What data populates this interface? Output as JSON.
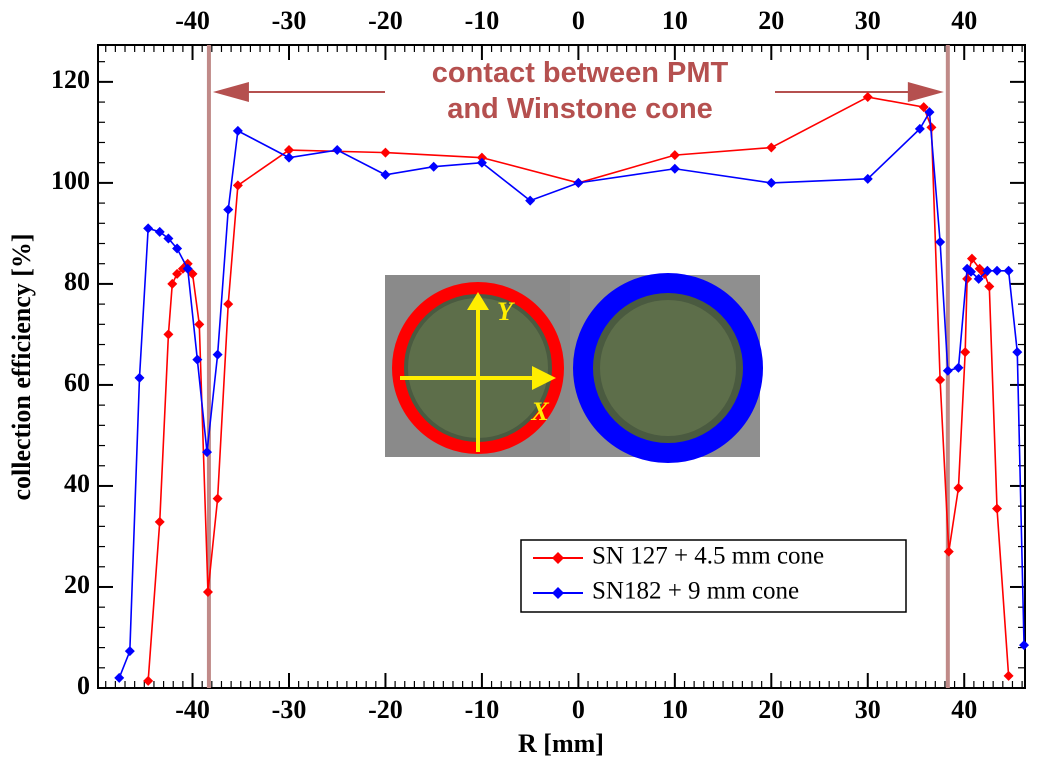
{
  "chart_data": {
    "type": "line",
    "xlabel": "R [mm]",
    "ylabel": "collection efficiency [%]",
    "xlim": [
      -49.8,
      46.3
    ],
    "ylim": [
      0,
      127.3
    ],
    "xticks": [
      -40,
      -30,
      -20,
      -10,
      0,
      10,
      20,
      30,
      40
    ],
    "yticks": [
      0,
      20,
      40,
      60,
      80,
      100,
      120
    ],
    "vlines": {
      "color": "#c08a88",
      "x": [
        -38.3,
        38.3
      ]
    },
    "annotation": {
      "color": "#b5504f",
      "lines": [
        "contact between PMT",
        "and Winstone cone"
      ]
    },
    "inset_labels": [
      "Y",
      "X"
    ],
    "legend": "lower right",
    "series": [
      {
        "name": "SN 127 + 4.5 mm cone",
        "color": "#ff0000",
        "x": [
          -44.6,
          -43.4,
          -42.5,
          -42.1,
          -41.6,
          -41.0,
          -40.5,
          -40.0,
          -39.3,
          -38.4,
          -37.4,
          -36.3,
          -35.3,
          -30,
          -20,
          -10,
          0,
          10,
          20,
          30,
          35.8,
          36.6,
          37.5,
          38.4,
          39.4,
          40.1,
          40.3,
          40.8,
          41.6,
          42.1,
          42.6,
          43.4,
          44.6
        ],
        "values": [
          1.4,
          32.9,
          70,
          80,
          82,
          83,
          84,
          82,
          72,
          19,
          37.5,
          76,
          99.5,
          106.5,
          106,
          105,
          100,
          105.5,
          107,
          117,
          115,
          111,
          61,
          27,
          39.6,
          66.5,
          81,
          85,
          83,
          82,
          79.5,
          35.5,
          2.4
        ]
      },
      {
        "name": "SN182 + 9 mm cone",
        "color": "#0000ff",
        "x": [
          -47.6,
          -46.5,
          -45.5,
          -44.6,
          -43.4,
          -42.5,
          -41.6,
          -40.5,
          -39.5,
          -38.5,
          -37.4,
          -36.3,
          -35.3,
          -30,
          -25,
          -20,
          -15,
          -10,
          -5,
          0,
          10,
          20,
          30,
          35.4,
          36.4,
          37.5,
          38.3,
          39.4,
          40.3,
          40.7,
          41.5,
          42.4,
          43.4,
          44.6,
          45.5,
          46.2
        ],
        "values": [
          2,
          7.3,
          61.4,
          91,
          90.3,
          89,
          87,
          83,
          65,
          46.7,
          66,
          94.7,
          110.3,
          105,
          106.5,
          101.6,
          103.2,
          104,
          96.5,
          100,
          102.8,
          100,
          100.8,
          110.7,
          114,
          88.3,
          62.8,
          63.4,
          83,
          82.4,
          81,
          82.6,
          82.6,
          82.6,
          66.5,
          8.5
        ]
      }
    ]
  }
}
